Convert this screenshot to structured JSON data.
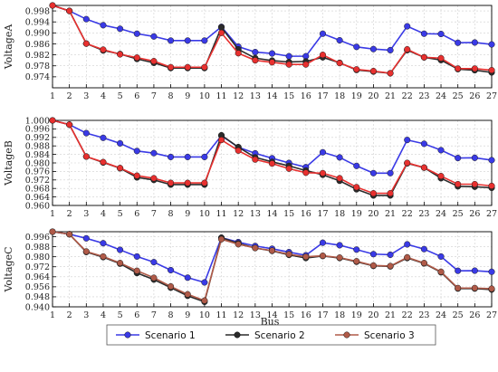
{
  "chart_data": [
    {
      "type": "line",
      "ylabel": "VoltageA",
      "ylim": [
        0.97,
        1.0
      ],
      "yticks": [
        0.974,
        0.978,
        0.982,
        0.986,
        0.99,
        0.994,
        0.998
      ],
      "x": [
        1,
        2,
        3,
        4,
        5,
        6,
        7,
        8,
        9,
        10,
        11,
        12,
        13,
        14,
        15,
        16,
        17,
        18,
        19,
        20,
        21,
        22,
        23,
        24,
        25,
        26,
        27
      ],
      "grid": true,
      "series": [
        {
          "name": "Scenario 1",
          "color": "#3a3ae6",
          "values": [
            1.0,
            0.998,
            0.995,
            0.9928,
            0.9915,
            0.9897,
            0.9887,
            0.9872,
            0.9872,
            0.9872,
            0.9922,
            0.985,
            0.983,
            0.9825,
            0.9815,
            0.9815,
            0.9897,
            0.9873,
            0.9849,
            0.9841,
            0.9837,
            0.9924,
            0.9897,
            0.9896,
            0.9864,
            0.9865,
            0.9858
          ]
        },
        {
          "name": "Scenario 2",
          "color": "#2b2b2b",
          "values": [
            1.0,
            0.998,
            0.9861,
            0.9836,
            0.9823,
            0.9805,
            0.9791,
            0.9772,
            0.9772,
            0.9772,
            0.992,
            0.984,
            0.9808,
            0.9799,
            0.9794,
            0.9796,
            0.9811,
            0.9791,
            0.9765,
            0.9759,
            0.9753,
            0.9837,
            0.9811,
            0.9801,
            0.9768,
            0.9764,
            0.9756
          ]
        },
        {
          "name": "Scenario 3",
          "color": "#e8302f",
          "values": [
            1.0,
            0.998,
            0.9861,
            0.9839,
            0.9822,
            0.981,
            0.9797,
            0.9775,
            0.9775,
            0.9775,
            0.99,
            0.9826,
            0.98,
            0.9793,
            0.9785,
            0.9785,
            0.982,
            0.979,
            0.9767,
            0.9761,
            0.9753,
            0.984,
            0.9811,
            0.9808,
            0.977,
            0.977,
            0.9764
          ]
        }
      ]
    },
    {
      "type": "line",
      "ylabel": "VoltageB",
      "ylim": [
        0.96,
        1.0
      ],
      "yticks": [
        0.96,
        0.964,
        0.968,
        0.972,
        0.976,
        0.98,
        0.984,
        0.988,
        0.992,
        0.996,
        1.0
      ],
      "x": [
        1,
        2,
        3,
        4,
        5,
        6,
        7,
        8,
        9,
        10,
        11,
        12,
        13,
        14,
        15,
        16,
        17,
        18,
        19,
        20,
        21,
        22,
        23,
        24,
        25,
        26,
        27
      ],
      "grid": true,
      "series": [
        {
          "name": "Scenario 1",
          "color": "#3a3ae6",
          "values": [
            1.0,
            0.998,
            0.994,
            0.9918,
            0.9892,
            0.9856,
            0.9846,
            0.9828,
            0.9828,
            0.9828,
            0.9928,
            0.9874,
            0.9845,
            0.9822,
            0.98,
            0.978,
            0.985,
            0.9826,
            0.9786,
            0.9752,
            0.9752,
            0.9908,
            0.989,
            0.986,
            0.9823,
            0.9824,
            0.9813
          ]
        },
        {
          "name": "Scenario 2",
          "color": "#2b2b2b",
          "values": [
            1.0,
            0.998,
            0.983,
            0.9802,
            0.9775,
            0.9732,
            0.972,
            0.9698,
            0.9698,
            0.9698,
            0.993,
            0.9874,
            0.9826,
            0.9805,
            0.9786,
            0.9764,
            0.9744,
            0.9716,
            0.9676,
            0.9647,
            0.9647,
            0.9798,
            0.9778,
            0.9728,
            0.969,
            0.9688,
            0.9683
          ]
        },
        {
          "name": "Scenario 3",
          "color": "#e8302f",
          "values": [
            1.0,
            0.998,
            0.983,
            0.9804,
            0.9776,
            0.974,
            0.9728,
            0.9706,
            0.9706,
            0.9706,
            0.9908,
            0.9858,
            0.9816,
            0.9797,
            0.9773,
            0.9754,
            0.9752,
            0.9728,
            0.9686,
            0.9657,
            0.9657,
            0.98,
            0.9778,
            0.9738,
            0.97,
            0.97,
            0.9692
          ]
        }
      ]
    },
    {
      "type": "line",
      "ylabel": "VoltageC",
      "ylim": [
        0.94,
        1.0
      ],
      "yticks": [
        0.94,
        0.948,
        0.956,
        0.964,
        0.972,
        0.98,
        0.988,
        0.996
      ],
      "x": [
        1,
        2,
        3,
        4,
        5,
        6,
        7,
        8,
        9,
        10,
        11,
        12,
        13,
        14,
        15,
        16,
        17,
        18,
        19,
        20,
        21,
        22,
        23,
        24,
        25,
        26,
        27
      ],
      "grid": true,
      "series": [
        {
          "name": "Scenario 1",
          "color": "#3a3ae6",
          "values": [
            1.0,
            0.998,
            0.9947,
            0.9908,
            0.9855,
            0.9802,
            0.9757,
            0.9693,
            0.9633,
            0.9595,
            0.9952,
            0.9917,
            0.9886,
            0.9864,
            0.9837,
            0.9812,
            0.9912,
            0.9892,
            0.9857,
            0.9821,
            0.9816,
            0.9899,
            0.9861,
            0.9802,
            0.9688,
            0.9689,
            0.968
          ]
        },
        {
          "name": "Scenario 2",
          "color": "#2b2b2b",
          "values": [
            1.0,
            0.998,
            0.9838,
            0.9797,
            0.9745,
            0.967,
            0.9618,
            0.9553,
            0.9488,
            0.944,
            0.9952,
            0.9907,
            0.987,
            0.9847,
            0.9815,
            0.979,
            0.9806,
            0.979,
            0.976,
            0.9727,
            0.9723,
            0.979,
            0.9747,
            0.9676,
            0.9546,
            0.9546,
            0.9538
          ]
        },
        {
          "name": "Scenario 3",
          "color": "#b05a48",
          "values": [
            1.0,
            0.998,
            0.9842,
            0.9802,
            0.975,
            0.9688,
            0.9632,
            0.9563,
            0.95,
            0.945,
            0.994,
            0.99,
            0.987,
            0.9849,
            0.982,
            0.98,
            0.9808,
            0.9793,
            0.9764,
            0.973,
            0.9726,
            0.9795,
            0.975,
            0.968,
            0.955,
            0.955,
            0.9545
          ]
        }
      ]
    }
  ],
  "xlabel": "Bus",
  "legend": {
    "placement": "bottom-center",
    "entries": [
      {
        "label": "Scenario 1",
        "color": "#3a3ae6"
      },
      {
        "label": "Scenario 2",
        "color": "#2b2b2b"
      },
      {
        "label": "Scenario 3",
        "color": "#b05a48"
      }
    ]
  }
}
